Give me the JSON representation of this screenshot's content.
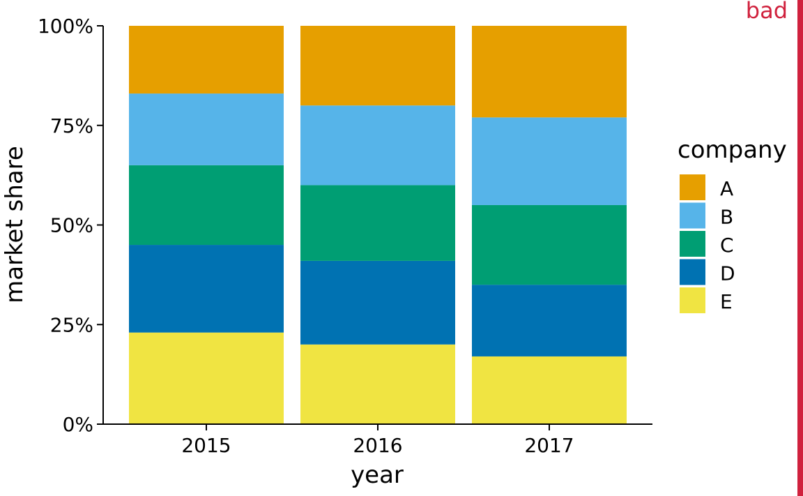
{
  "badge": {
    "label": "bad",
    "color": "#d0213d"
  },
  "chart_data": {
    "type": "bar",
    "stacked": true,
    "categories": [
      "2015",
      "2016",
      "2017"
    ],
    "xlabel": "year",
    "ylabel": "market share",
    "ylim": [
      0,
      1
    ],
    "yticks": [
      0,
      0.25,
      0.5,
      0.75,
      1
    ],
    "yticklabels": [
      "0%",
      "25%",
      "50%",
      "75%",
      "100%"
    ],
    "legend": {
      "title": "company",
      "placement": "right"
    },
    "series": [
      {
        "name": "E",
        "color": "#F0E442",
        "values": [
          0.23,
          0.2,
          0.17
        ]
      },
      {
        "name": "D",
        "color": "#0072B2",
        "values": [
          0.22,
          0.21,
          0.18
        ]
      },
      {
        "name": "C",
        "color": "#009E73",
        "values": [
          0.2,
          0.19,
          0.2
        ]
      },
      {
        "name": "B",
        "color": "#56B4E9",
        "values": [
          0.18,
          0.2,
          0.22
        ]
      },
      {
        "name": "A",
        "color": "#E69F00",
        "values": [
          0.17,
          0.2,
          0.23
        ]
      }
    ],
    "legend_order": [
      "A",
      "B",
      "C",
      "D",
      "E"
    ]
  }
}
